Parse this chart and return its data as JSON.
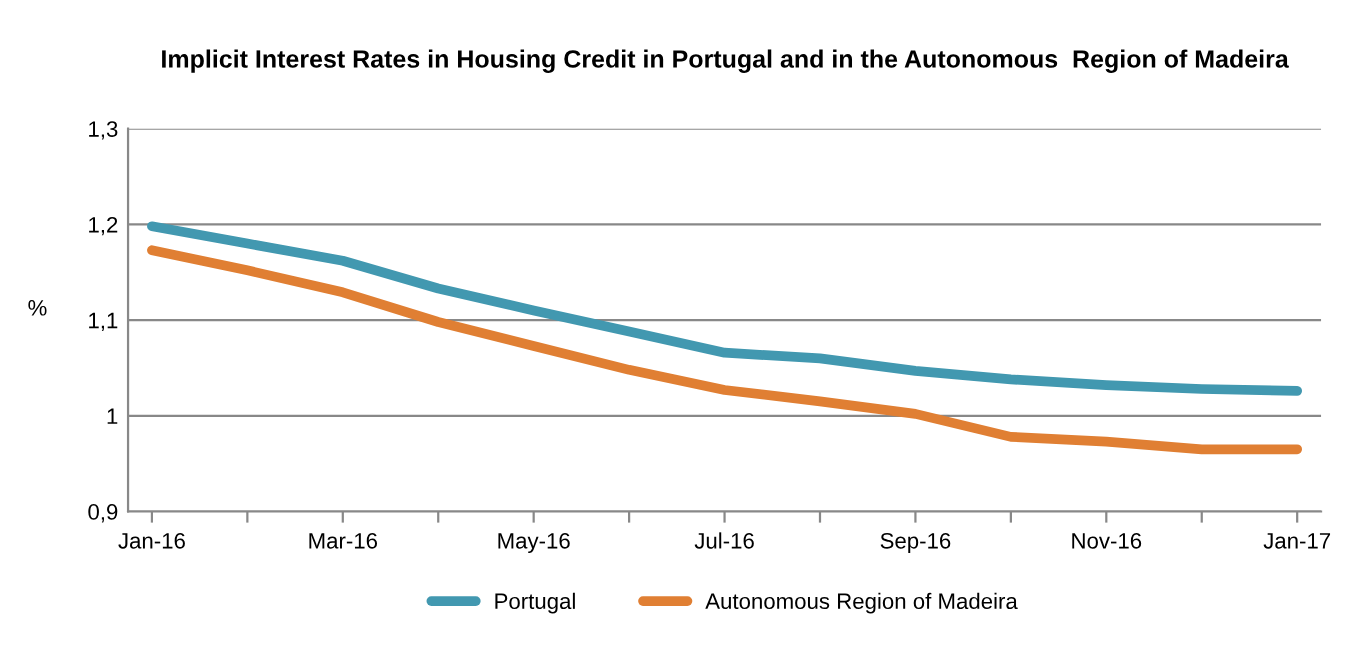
{
  "chart_data": {
    "type": "line",
    "title": "Implicit Interest Rates in Housing Credit in Portugal and in the Autonomous  Region of Madeira",
    "ylabel": "%",
    "categories": [
      "Jan-16",
      null,
      "Mar-16",
      null,
      "May-16",
      null,
      "Jul-16",
      null,
      "Sep-16",
      null,
      "Nov-16",
      null,
      "Jan-17"
    ],
    "series": [
      {
        "name": "Portugal",
        "color": "#4298b0",
        "values": [
          1.198,
          1.18,
          1.162,
          1.133,
          1.11,
          1.088,
          1.066,
          1.06,
          1.047,
          1.038,
          1.032,
          1.028,
          1.026
        ]
      },
      {
        "name": "Autonomous Region of Madeira",
        "color": "#e07f33",
        "values": [
          1.173,
          1.152,
          1.129,
          1.098,
          1.073,
          1.048,
          1.027,
          1.015,
          1.002,
          0.978,
          0.973,
          0.965,
          0.965
        ]
      }
    ],
    "ylim": [
      0.9,
      1.3
    ],
    "yticks": [
      {
        "value": 0.9,
        "label": "0,9"
      },
      1,
      {
        "value": 1.1,
        "label": "1,1"
      },
      {
        "value": 1.2,
        "label": "1,2"
      },
      {
        "value": 1.3,
        "label": "1,3"
      }
    ],
    "grid": "y",
    "legend": "bottom",
    "marker": "none",
    "line_style": "solid"
  }
}
